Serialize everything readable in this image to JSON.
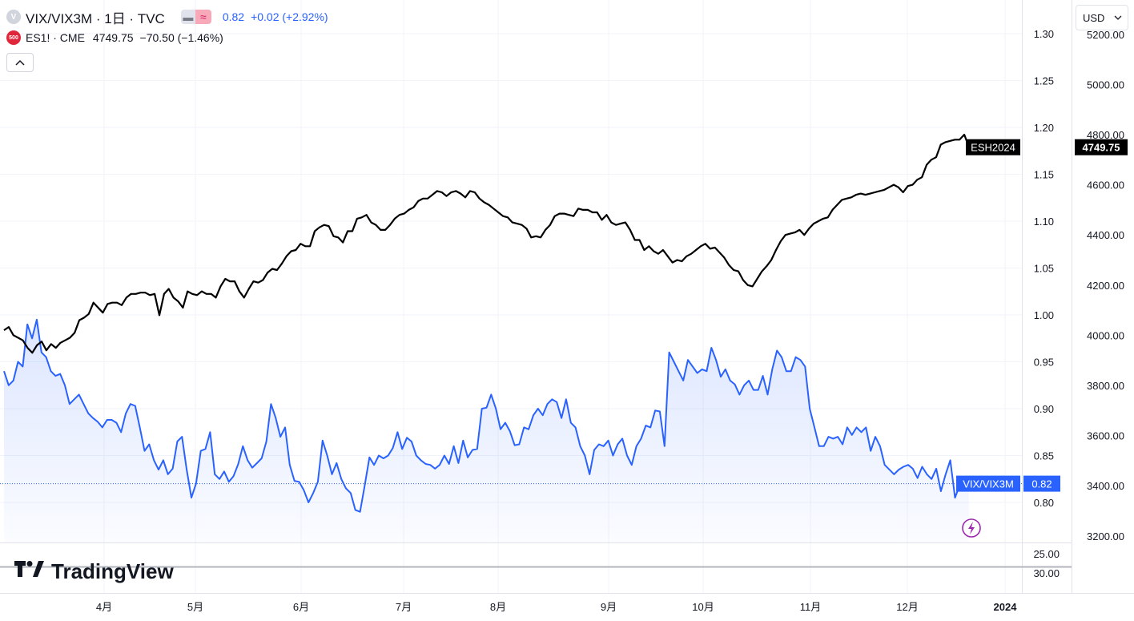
{
  "legend": {
    "main_symbol": "VIX/VIX3M · 1日 · TVC",
    "main_icon": "V",
    "main_value": "0.82",
    "main_change": "+0.02 (+2.92%)",
    "chip_a_icon": "dash-icon",
    "chip_b_icon": "approx-icon",
    "chip_b_glyph": "≈",
    "compare_symbol": "ES1! · CME",
    "compare_icon": "500",
    "compare_value": "4749.75",
    "compare_change": "−70.50 (−1.46%)",
    "collapse_glyph": "^"
  },
  "currency": {
    "label": "USD"
  },
  "watermark": "TradingView",
  "colors": {
    "vix_line": "#2962ff",
    "es_line": "#000000",
    "background": "#ffffff",
    "grid": "#f0f3fa"
  },
  "chart_data": [
    {
      "type": "line",
      "axis": "left-scale",
      "x_labels": [
        "4月",
        "5月",
        "6月",
        "7月",
        "8月",
        "9月",
        "10月",
        "11月",
        "12月",
        "2024"
      ],
      "ylim": [
        0.766,
        1.31
      ],
      "y_ticks": [
        "1.30",
        "1.25",
        "1.20",
        "1.15",
        "1.10",
        "1.05",
        "1.00",
        "0.95",
        "0.90",
        "0.85",
        "0.80"
      ],
      "series": [
        {
          "name": "VIX/VIX3M",
          "last_label": "0.82",
          "values": [
            0.94,
            0.925,
            0.93,
            0.95,
            0.945,
            0.99,
            0.975,
            0.995,
            0.96,
            0.955,
            0.94,
            0.935,
            0.937,
            0.925,
            0.905,
            0.91,
            0.915,
            0.905,
            0.895,
            0.89,
            0.886,
            0.88,
            0.888,
            0.888,
            0.885,
            0.875,
            0.895,
            0.905,
            0.903,
            0.88,
            0.855,
            0.862,
            0.845,
            0.835,
            0.845,
            0.83,
            0.836,
            0.865,
            0.87,
            0.835,
            0.805,
            0.82,
            0.855,
            0.857,
            0.875,
            0.83,
            0.825,
            0.833,
            0.822,
            0.828,
            0.841,
            0.86,
            0.845,
            0.837,
            0.842,
            0.847,
            0.865,
            0.905,
            0.89,
            0.87,
            0.88,
            0.84,
            0.823,
            0.822,
            0.813,
            0.8,
            0.81,
            0.822,
            0.866,
            0.85,
            0.83,
            0.842,
            0.825,
            0.815,
            0.81,
            0.792,
            0.79,
            0.818,
            0.848,
            0.84,
            0.85,
            0.847,
            0.85,
            0.858,
            0.875,
            0.857,
            0.869,
            0.865,
            0.85,
            0.845,
            0.841,
            0.84,
            0.836,
            0.84,
            0.85,
            0.841,
            0.86,
            0.842,
            0.866,
            0.848,
            0.856,
            0.857,
            0.9,
            0.901,
            0.915,
            0.9,
            0.878,
            0.885,
            0.876,
            0.861,
            0.862,
            0.88,
            0.878,
            0.893,
            0.9,
            0.893,
            0.905,
            0.91,
            0.907,
            0.89,
            0.91,
            0.885,
            0.88,
            0.86,
            0.85,
            0.83,
            0.856,
            0.862,
            0.86,
            0.866,
            0.85,
            0.862,
            0.868,
            0.85,
            0.84,
            0.86,
            0.868,
            0.882,
            0.88,
            0.898,
            0.897,
            0.86,
            0.96,
            0.95,
            0.94,
            0.93,
            0.952,
            0.945,
            0.938,
            0.942,
            0.94,
            0.965,
            0.952,
            0.934,
            0.942,
            0.93,
            0.926,
            0.915,
            0.925,
            0.93,
            0.92,
            0.92,
            0.935,
            0.915,
            0.942,
            0.962,
            0.955,
            0.94,
            0.94,
            0.955,
            0.952,
            0.945,
            0.9,
            0.88,
            0.86,
            0.86,
            0.87,
            0.868,
            0.87,
            0.862,
            0.88,
            0.872,
            0.88,
            0.875,
            0.88,
            0.855,
            0.87,
            0.86,
            0.84,
            0.835,
            0.83,
            0.835,
            0.838,
            0.84,
            0.836,
            0.826,
            0.838,
            0.83,
            0.825,
            0.836,
            0.812,
            0.83,
            0.845,
            0.805,
            0.818,
            0.815,
            0.82
          ]
        }
      ]
    },
    {
      "type": "line",
      "axis": "right-scale",
      "ylim": [
        3130,
        4990
      ],
      "y_ticks": [
        "5200.00",
        "5000.00",
        "4800.00",
        "4600.00",
        "4400.00",
        "4200.00",
        "4000.00",
        "3800.00",
        "3600.00",
        "3400.00",
        "3200.00"
      ],
      "series": [
        {
          "name": "ESH2024",
          "last_label": "4749.75",
          "values": [
            4020,
            4033,
            4000,
            3990,
            3980,
            3950,
            3930,
            3960,
            3975,
            3940,
            3965,
            3950,
            3970,
            3980,
            3990,
            4010,
            4060,
            4070,
            4085,
            4130,
            4110,
            4090,
            4125,
            4130,
            4130,
            4120,
            4150,
            4165,
            4165,
            4170,
            4170,
            4160,
            4165,
            4080,
            4165,
            4185,
            4150,
            4135,
            4110,
            4175,
            4165,
            4160,
            4175,
            4165,
            4165,
            4150,
            4195,
            4225,
            4215,
            4215,
            4175,
            4150,
            4185,
            4215,
            4210,
            4220,
            4250,
            4265,
            4260,
            4285,
            4315,
            4335,
            4340,
            4365,
            4355,
            4355,
            4415,
            4430,
            4440,
            4435,
            4395,
            4390,
            4370,
            4415,
            4415,
            4465,
            4470,
            4480,
            4450,
            4440,
            4420,
            4420,
            4440,
            4465,
            4480,
            4485,
            4500,
            4510,
            4535,
            4545,
            4545,
            4560,
            4575,
            4570,
            4555,
            4570,
            4575,
            4565,
            4550,
            4575,
            4570,
            4545,
            4530,
            4520,
            4505,
            4490,
            4475,
            4470,
            4450,
            4445,
            4440,
            4425,
            4390,
            4395,
            4390,
            4420,
            4440,
            4475,
            4485,
            4485,
            4480,
            4475,
            4505,
            4500,
            4500,
            4490,
            4490,
            4460,
            4480,
            4450,
            4440,
            4445,
            4450,
            4420,
            4380,
            4380,
            4340,
            4355,
            4335,
            4325,
            4340,
            4315,
            4290,
            4300,
            4295,
            4315,
            4325,
            4340,
            4355,
            4365,
            4345,
            4350,
            4330,
            4310,
            4280,
            4260,
            4255,
            4220,
            4200,
            4195,
            4225,
            4255,
            4275,
            4300,
            4340,
            4375,
            4400,
            4405,
            4410,
            4420,
            4400,
            4425,
            4445,
            4455,
            4465,
            4470,
            4500,
            4520,
            4540,
            4545,
            4550,
            4560,
            4565,
            4560,
            4565,
            4570,
            4575,
            4580,
            4590,
            4600,
            4590,
            4570,
            4595,
            4600,
            4620,
            4630,
            4680,
            4700,
            4710,
            4760,
            4770,
            4775,
            4780,
            4780,
            4800,
            4749.75
          ]
        }
      ]
    },
    {
      "type": "line",
      "axis": "lower-scale",
      "y_ticks": [
        "25.00",
        "30.00"
      ]
    }
  ]
}
